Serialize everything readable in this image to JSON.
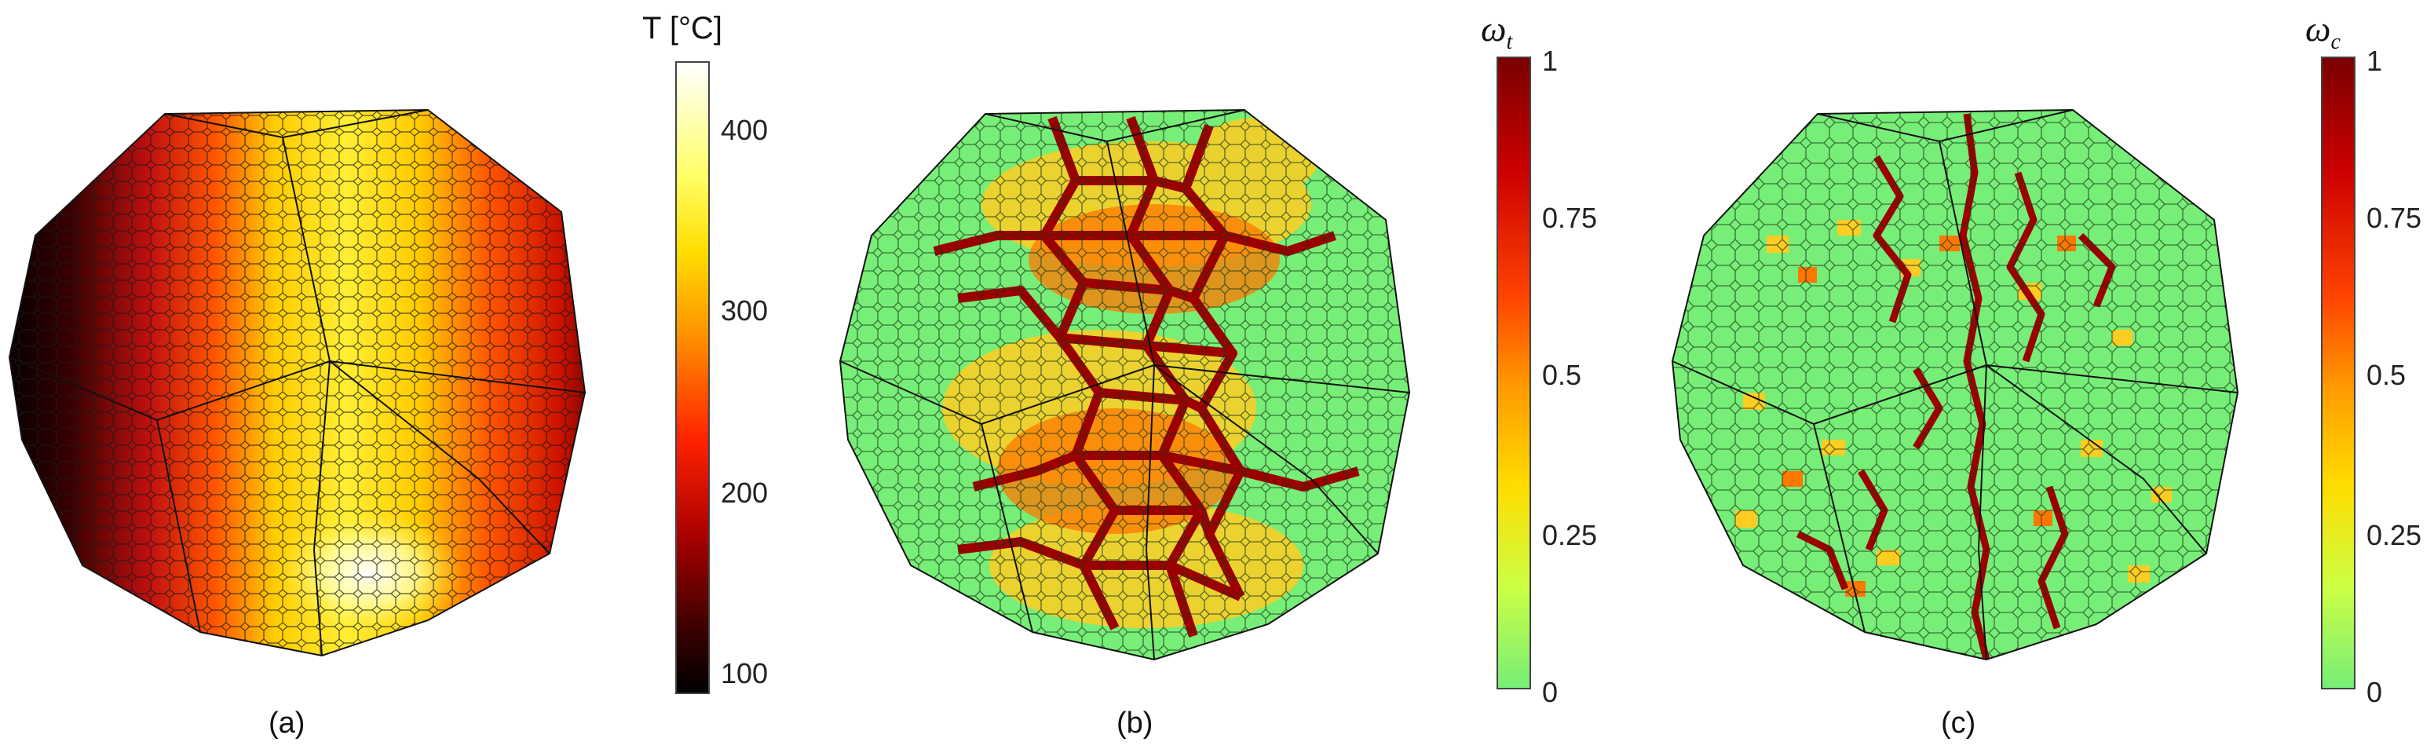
{
  "panels": [
    {
      "caption": "(a)",
      "colorbar": {
        "title": "T [°C]",
        "ticks": [
          "400",
          "300",
          "200",
          "100"
        ],
        "colormap": [
          "#ffffff",
          "#ffff66",
          "#ffdd00",
          "#ff9900",
          "#ff2200",
          "#aa0000",
          "#3a0000",
          "#000000"
        ]
      }
    },
    {
      "caption": "(b)",
      "colorbar": {
        "title_symbol": "ω",
        "title_subscript": "t",
        "ticks": [
          "1",
          "0.75",
          "0.5",
          "0.25",
          "0"
        ],
        "colormap": [
          "#7a0000",
          "#cc0000",
          "#ff4400",
          "#ff9900",
          "#ffdd00",
          "#ccff44",
          "#77ee77"
        ]
      }
    },
    {
      "caption": "(c)",
      "colorbar": {
        "title_symbol": "ω",
        "title_subscript": "c",
        "ticks": [
          "1",
          "0.75",
          "0.5",
          "0.25",
          "0"
        ],
        "colormap": [
          "#7a0000",
          "#cc0000",
          "#ff4400",
          "#ff9900",
          "#ffdd00",
          "#ccff44",
          "#77ee77"
        ]
      }
    }
  ]
}
